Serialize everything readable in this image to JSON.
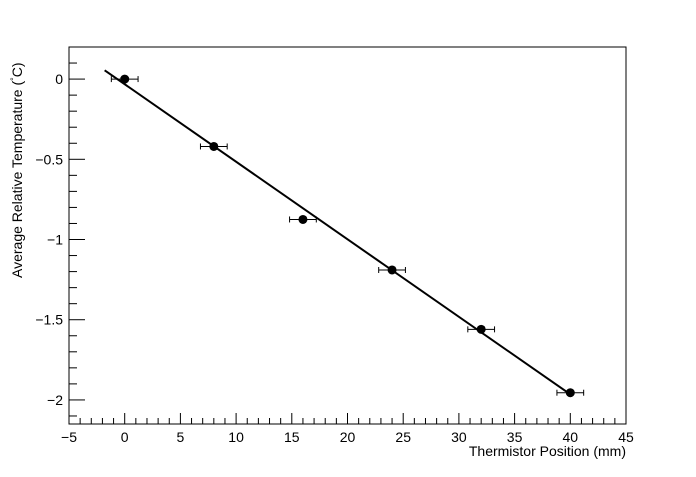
{
  "chart_data": {
    "type": "scatter",
    "title": "",
    "xlabel": "Thermistor Position (mm)",
    "ylabel_main": "Average Relative Temperature (",
    "ylabel_degree": "°",
    "ylabel_unit": "C)",
    "xlim": [
      -5,
      45
    ],
    "ylim": [
      -2.15,
      0.2
    ],
    "x_ticks": [
      -5,
      0,
      5,
      10,
      15,
      20,
      25,
      30,
      35,
      40,
      45
    ],
    "x_tick_labels": [
      "−5",
      "0",
      "5",
      "10",
      "15",
      "20",
      "25",
      "30",
      "35",
      "40",
      "45"
    ],
    "y_ticks": [
      0,
      -0.5,
      -1,
      -1.5,
      -2
    ],
    "y_tick_labels": [
      "0",
      "−0.5",
      "−1",
      "−1.5",
      "−2"
    ],
    "grid": false,
    "series": [
      {
        "x": [
          0,
          8,
          16,
          24,
          32,
          40
        ],
        "y": [
          0,
          -0.42,
          -0.875,
          -1.19,
          -1.56,
          -1.955
        ],
        "x_err": [
          1.2,
          1.2,
          1.2,
          1.2,
          1.2,
          1.2
        ]
      }
    ],
    "fit_line": {
      "x": [
        -1.8,
        40
      ],
      "y": [
        0.055,
        -1.965
      ]
    },
    "colors": {
      "marker": "#000000",
      "line": "#000000",
      "frame": "#000000"
    }
  }
}
